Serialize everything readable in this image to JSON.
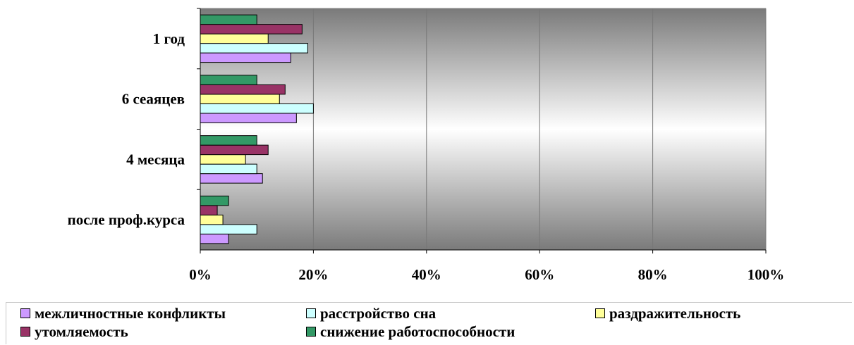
{
  "chart_data": {
    "type": "bar",
    "orientation": "horizontal",
    "categories": [
      "после проф.курса",
      "4 месяца",
      "6 сеаяцев",
      "1 год"
    ],
    "series": [
      {
        "name": "межличностные конфликты",
        "color": "#cc99ff",
        "values": [
          5,
          11,
          17,
          16
        ]
      },
      {
        "name": "расстройство сна",
        "color": "#ccffff",
        "values": [
          10,
          10,
          20,
          19
        ]
      },
      {
        "name": "раздражительность",
        "color": "#ffff99",
        "values": [
          4,
          8,
          14,
          12
        ]
      },
      {
        "name": "утомляемость",
        "color": "#993366",
        "values": [
          3,
          12,
          15,
          18
        ]
      },
      {
        "name": "снижение работоспособности",
        "color": "#339966",
        "values": [
          5,
          10,
          10,
          10
        ]
      }
    ],
    "x_ticks": [
      "0%",
      "20%",
      "40%",
      "60%",
      "80%",
      "100%"
    ],
    "xlim": [
      0,
      100
    ],
    "grid": true,
    "legend_position": "bottom"
  }
}
